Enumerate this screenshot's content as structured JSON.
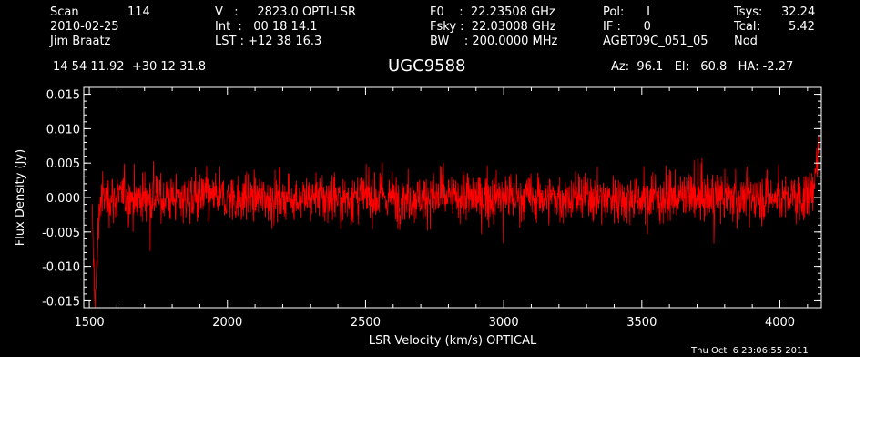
{
  "header": {
    "col1": {
      "scan_label": "Scan",
      "scan_value": "114",
      "date": "2010-02-25",
      "observer": "Jim Braatz"
    },
    "col2": {
      "velocity": "V   :     2823.0 OPTI-LSR",
      "int": "Int  :   00 18 14.1",
      "lst": "LST : +12 38 16.3"
    },
    "col3": {
      "f0": "F0    :  22.23508 GHz",
      "fsky": "Fsky :  22.03008 GHz",
      "bw": "BW    : 200.0000 MHz"
    },
    "col4": {
      "pol": "Pol:      I",
      "if": "IF :      0",
      "project": "AGBT09C_051_05"
    },
    "col5": {
      "tsys_label": "Tsys:",
      "tsys_value": "32.24",
      "tcal_label": "Tcal:",
      "tcal_value": "5.42",
      "mode": "Nod"
    },
    "coords": "14 54 11.92  +30 12 31.8",
    "source": "UGC9588",
    "pointing": "Az:  96.1   El:   60.8   HA: -2.27"
  },
  "timestamp": "Thu Oct  6 23:06:55 2011",
  "colors": {
    "background": "#000000",
    "axes": "#ffffff",
    "trace": "#ff0000"
  },
  "chart_data": {
    "type": "line",
    "xlabel": "LSR Velocity (km/s) OPTICAL",
    "ylabel": "Flux Density (Jy)",
    "xlim": [
      1480,
      4150
    ],
    "ylim": [
      -0.016,
      0.016
    ],
    "x_ticks": [
      1500,
      2000,
      2500,
      3000,
      3500,
      4000
    ],
    "x_tick_labels": [
      "1500",
      "2000",
      "2500",
      "3000",
      "3500",
      "4000"
    ],
    "y_ticks": [
      -0.015,
      -0.01,
      -0.005,
      0.0,
      0.005,
      0.01,
      0.015
    ],
    "y_tick_labels": [
      "-0.015",
      "-0.010",
      "-0.005",
      "0.000",
      "0.005",
      "0.010",
      "0.015"
    ],
    "grid": false,
    "series": [
      {
        "color": "#ff0000",
        "x_range": [
          1510,
          4140
        ],
        "noise_rms": 0.0025,
        "features": [
          {
            "x": 1520,
            "y": -0.014
          },
          {
            "x": 1530,
            "y": -0.009
          },
          {
            "x": 4125,
            "y": 0.008
          },
          {
            "x": 4140,
            "y": 0.011
          }
        ]
      }
    ]
  }
}
